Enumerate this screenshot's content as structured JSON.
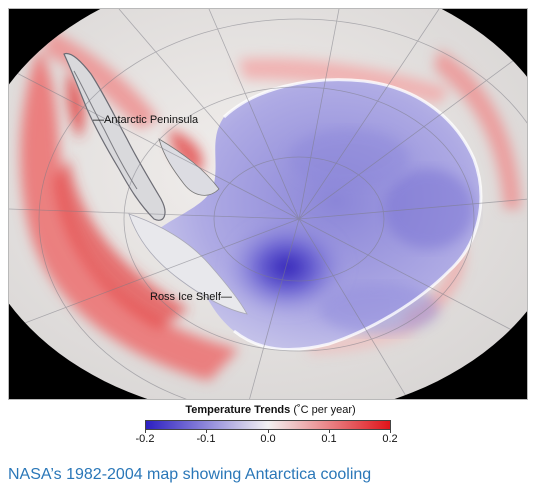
{
  "map": {
    "labels": {
      "peninsula": "—Antarctic Peninsula",
      "ross": "Ross Ice Shelf—"
    }
  },
  "legend": {
    "title": "Temperature Trends",
    "unit": "(˚C per year)",
    "ticks": [
      "-0.2",
      "-0.1",
      "0.0",
      "0.1",
      "0.2"
    ],
    "colors": {
      "cold": "#2c1fc2",
      "neutral": "#f3f2f2",
      "warm": "#e0141a"
    }
  },
  "caption": "NASA’s 1982-2004 map showing Antarctica cooling"
}
